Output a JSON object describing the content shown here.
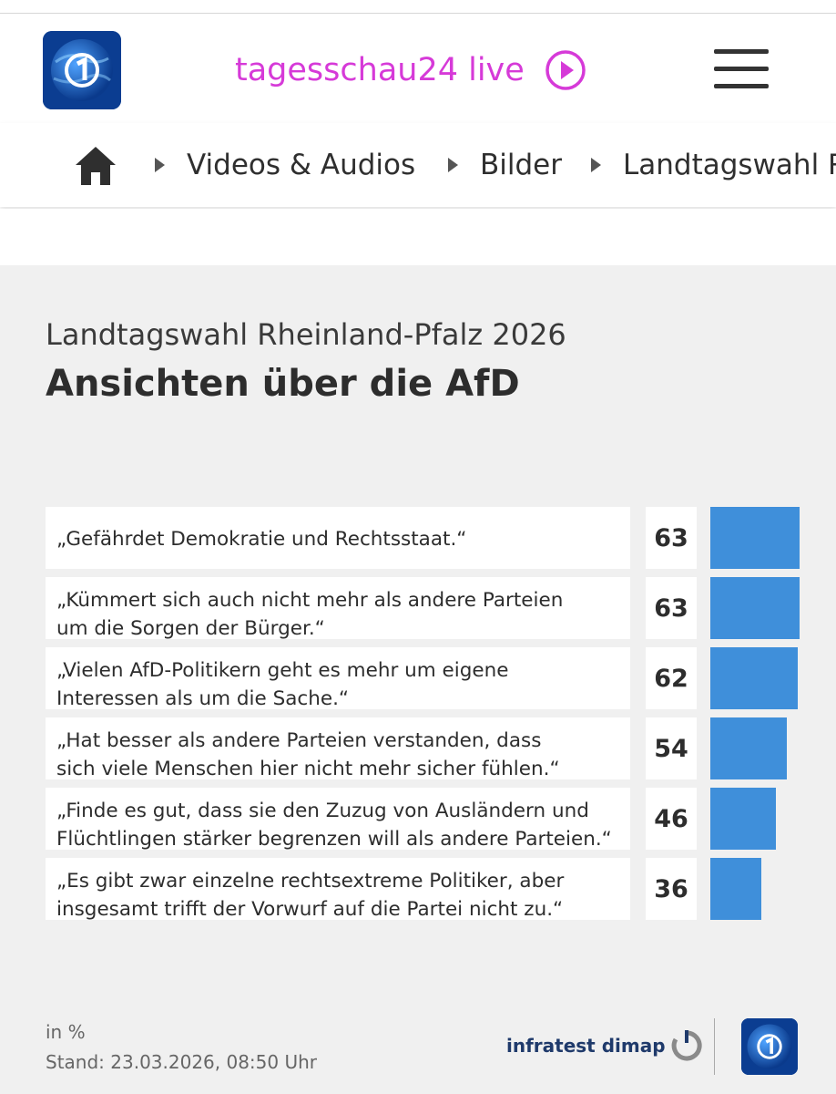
{
  "header": {
    "live_label": "tagesschau24 live",
    "live_icon": "play-circle-icon",
    "menu_icon": "hamburger-menu-icon",
    "accent_color": "#d63ad8"
  },
  "breadcrumb": {
    "home_icon": "home-icon",
    "items": [
      "Videos & Audios",
      "Bilder",
      "Landtagswahl R"
    ]
  },
  "graphic": {
    "subtitle": "Landtagswahl Rheinland-Pfalz 2026",
    "title": "Ansichten über die AfD",
    "unit": "in %",
    "stand": "Stand:  23.03.2026, 08:50 Uhr",
    "source": "infratest dimap",
    "bar_color": "#3f8fda"
  },
  "chart_data": {
    "type": "bar",
    "orientation": "horizontal",
    "title": "Ansichten über die AfD",
    "subtitle": "Landtagswahl Rheinland-Pfalz 2026",
    "unit": "in %",
    "categories": [
      "„Gefährdet Demokratie und Rechtsstaat.“",
      "„Kümmert sich auch nicht mehr als andere Parteien\num die Sorgen der Bürger.“",
      "„Vielen AfD-Politikern geht es mehr um eigene\nInteressen als um die Sache.“",
      "„Hat besser als andere Parteien verstanden, dass\nsich viele Menschen hier nicht mehr sicher fühlen.“",
      "„Finde es gut, dass sie den Zuzug von Ausländern und\nFlüchtlingen stärker begrenzen will als andere Parteien.“",
      "„Es gibt zwar einzelne rechtsextreme Politiker, aber\ninsgesamt trifft der Vorwurf auf die Partei nicht zu.“"
    ],
    "values": [
      63,
      63,
      62,
      54,
      46,
      36
    ],
    "xlim": [
      0,
      63
    ]
  }
}
